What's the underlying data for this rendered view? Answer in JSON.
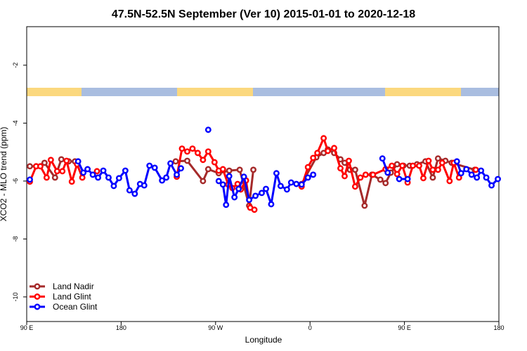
{
  "chart_data": {
    "type": "line",
    "title": "47.5N-52.5N September (Ver 10)   2015-01-01 to 2020-12-18",
    "x_label": "Longitude",
    "y_label": "XCO2 - MLO trend (ppm)",
    "xlim": [
      90,
      540
    ],
    "xticks": [
      {
        "value": 90,
        "label": "90 E"
      },
      180,
      {
        "value": 270,
        "label": "90 W"
      },
      {
        "value": 360,
        "label": "0"
      },
      {
        "value": 450,
        "label": "90 E"
      },
      {
        "value": 540,
        "label": "180"
      }
    ],
    "ylim": [
      -10.85,
      -0.67
    ],
    "yticks": [
      -10,
      -8,
      -6,
      -4,
      -2
    ],
    "legend": "bottom-left",
    "series": [
      {
        "name": "Land Nadir",
        "color": "#a52a2a",
        "x": [
          93,
          99,
          107,
          117,
          123,
          130,
          136,
          null,
          232,
          243,
          258,
          263,
          273,
          283,
          293,
          302,
          306,
          null,
          352,
          366,
          373,
          377,
          383,
          389,
          393,
          398,
          403,
          412,
          419,
          427,
          432,
          437,
          443,
          449,
          455,
          462,
          470,
          477,
          482,
          489,
          495,
          517
        ],
        "values": [
          -5.49,
          -5.49,
          -5.37,
          -5.88,
          -5.25,
          -5.32,
          -5.32,
          null,
          -5.32,
          -5.3,
          -6.0,
          -5.59,
          -5.73,
          -5.64,
          -5.61,
          -6.85,
          -5.61,
          null,
          -6.1,
          -5.18,
          -5.03,
          -4.91,
          -5.03,
          -5.25,
          -5.37,
          -5.61,
          -5.61,
          -6.85,
          -5.78,
          -5.95,
          -6.07,
          -5.71,
          -5.42,
          -5.47,
          -5.47,
          -5.42,
          -5.32,
          -5.88,
          -5.22,
          -5.3,
          -5.37,
          -5.61
        ]
      },
      {
        "name": "Land Glint",
        "color": "#ff0000",
        "x": [
          93,
          99,
          103,
          109,
          113,
          119,
          124,
          128,
          133,
          138,
          143,
          null,
          157,
          null,
          233,
          238,
          243,
          248,
          253,
          258,
          263,
          269,
          273,
          277,
          282,
          286,
          291,
          294,
          299,
          303,
          307,
          null,
          352,
          358,
          363,
          367,
          373,
          377,
          383,
          389,
          393,
          397,
          403,
          408,
          413,
          420,
          432,
          438,
          443,
          448,
          453,
          458,
          464,
          468,
          473,
          477,
          482,
          486,
          493,
          497,
          502,
          null,
          518
        ],
        "values": [
          -6.02,
          -5.49,
          -5.49,
          -5.88,
          -5.27,
          -5.66,
          -5.66,
          -5.3,
          -6.02,
          -5.42,
          -5.88,
          null,
          -5.66,
          null,
          -5.85,
          -4.88,
          -4.98,
          -4.88,
          -5.03,
          -5.27,
          -4.98,
          -5.35,
          -5.64,
          -5.59,
          -6.12,
          -6.24,
          -6.1,
          -6.29,
          -5.98,
          -6.92,
          -6.99,
          null,
          -6.19,
          -5.52,
          -5.2,
          -5.03,
          -4.52,
          -4.96,
          -4.86,
          -5.56,
          -5.83,
          -5.3,
          -6.19,
          -5.88,
          -5.78,
          -5.78,
          -5.59,
          -5.47,
          -5.76,
          -5.47,
          -6.05,
          -5.47,
          -5.47,
          -5.9,
          -5.3,
          -5.61,
          -5.61,
          -5.37,
          -6.0,
          -5.37,
          -5.88,
          null,
          -5.61
        ]
      },
      {
        "name": "Ocean Glint",
        "color": "#0000ff",
        "x": [
          93,
          null,
          139,
          144,
          148,
          153,
          158,
          163,
          168,
          173,
          178,
          184,
          188,
          193,
          198,
          202,
          207,
          212,
          219,
          223,
          227,
          233,
          237,
          null,
          263,
          null,
          273,
          277,
          280,
          283,
          288,
          292,
          297,
          302,
          308,
          314,
          318,
          323,
          328,
          332,
          338,
          342,
          347,
          352,
          358,
          363,
          null,
          429,
          434,
          null,
          445,
          453,
          null,
          500,
          504,
          509,
          514,
          519,
          523,
          528,
          533,
          539
        ],
        "values": [
          -5.95,
          null,
          -5.32,
          -5.71,
          -5.59,
          -5.78,
          -5.88,
          -5.64,
          -5.88,
          -6.17,
          -5.9,
          -5.64,
          -6.32,
          -6.44,
          -6.1,
          -6.15,
          -5.47,
          -5.54,
          -5.98,
          -5.88,
          -5.39,
          -5.78,
          -5.56,
          null,
          -4.23,
          null,
          -6.0,
          -6.12,
          -6.82,
          -5.83,
          -6.56,
          -6.27,
          -5.85,
          -6.65,
          -6.51,
          -6.41,
          -6.27,
          -6.8,
          -5.73,
          -6.17,
          -6.29,
          -6.05,
          -6.1,
          -6.12,
          -5.88,
          -5.78,
          null,
          -5.22,
          -5.71,
          null,
          -5.93,
          -5.93,
          null,
          -5.32,
          -5.73,
          -5.59,
          -5.78,
          -5.88,
          -5.64,
          -5.88,
          -6.15,
          -5.93
        ]
      }
    ]
  }
}
